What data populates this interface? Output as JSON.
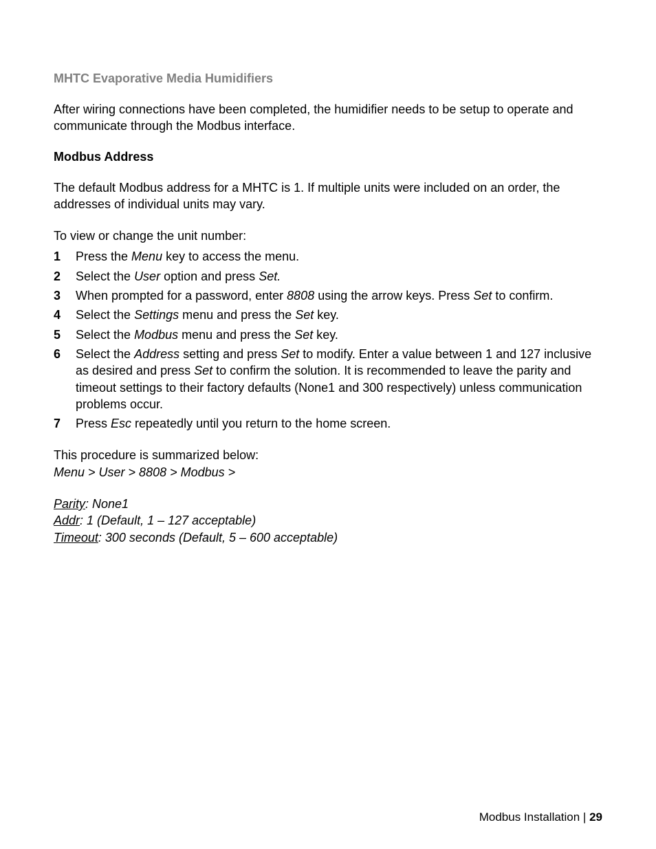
{
  "colors": {
    "background": "#ffffff",
    "text": "#000000",
    "heading_gray": "#808080"
  },
  "typography": {
    "body_fontsize": 18,
    "line_height": 1.35,
    "font_family": "Arial, Helvetica, sans-serif"
  },
  "heading": "MHTC Evaporative Media Humidifiers",
  "intro": "After wiring connections have been completed, the humidifier needs to be setup to operate and communicate through the Modbus interface.",
  "subheading": "Modbus Address",
  "address_para": "The default Modbus address for a MHTC is 1.  If multiple units were included on an order, the addresses of individual units may vary.",
  "steps_lead": "To view or change the unit number:",
  "steps": [
    {
      "n": "1",
      "pre": "Press the ",
      "i1": "Menu",
      "post": " key to access the menu."
    },
    {
      "n": "2",
      "pre": "Select the ",
      "i1": "User",
      "mid": " option and press ",
      "i2": "Set.",
      "post": ""
    },
    {
      "n": "3",
      "pre": "When prompted for a password, enter ",
      "i1": "8808",
      "mid": " using the arrow keys.  Press ",
      "i2": "Set",
      "post": " to confirm."
    },
    {
      "n": "4",
      "pre": "Select the ",
      "i1": "Settings",
      "mid": " menu and press the ",
      "i2": "Set",
      "post": " key."
    },
    {
      "n": "5",
      "pre": "Select the ",
      "i1": "Modbus",
      "mid": " menu and press the ",
      "i2": "Set",
      "post": " key."
    },
    {
      "n": "6",
      "pre": "Select the ",
      "i1": "Address",
      "mid": " setting and press ",
      "i2": "Set",
      "mid2": " to modify.  Enter a value between 1 and 127 inclusive as desired and press ",
      "i3": "Set",
      "post": " to confirm the solution.  It is recommended to leave the parity and timeout settings to their factory defaults (None1 and 300 respectively) unless communication problems occur."
    },
    {
      "n": "7",
      "pre": "Press ",
      "i1": "Esc",
      "post": " repeatedly until you return to the home screen."
    }
  ],
  "summary_lead": "This procedure is summarized below:",
  "summary_path": "Menu > User > 8808 > Modbus >",
  "params": {
    "parity": {
      "label": "Parity",
      "value": ": None1"
    },
    "addr": {
      "label": "Addr",
      "value": ": 1 (Default, 1 – 127 acceptable)"
    },
    "timeout": {
      "label": "Timeout",
      "value": ": 300 seconds (Default, 5 – 600 acceptable)"
    }
  },
  "footer": {
    "label": "Modbus Installation | ",
    "page": "29"
  }
}
